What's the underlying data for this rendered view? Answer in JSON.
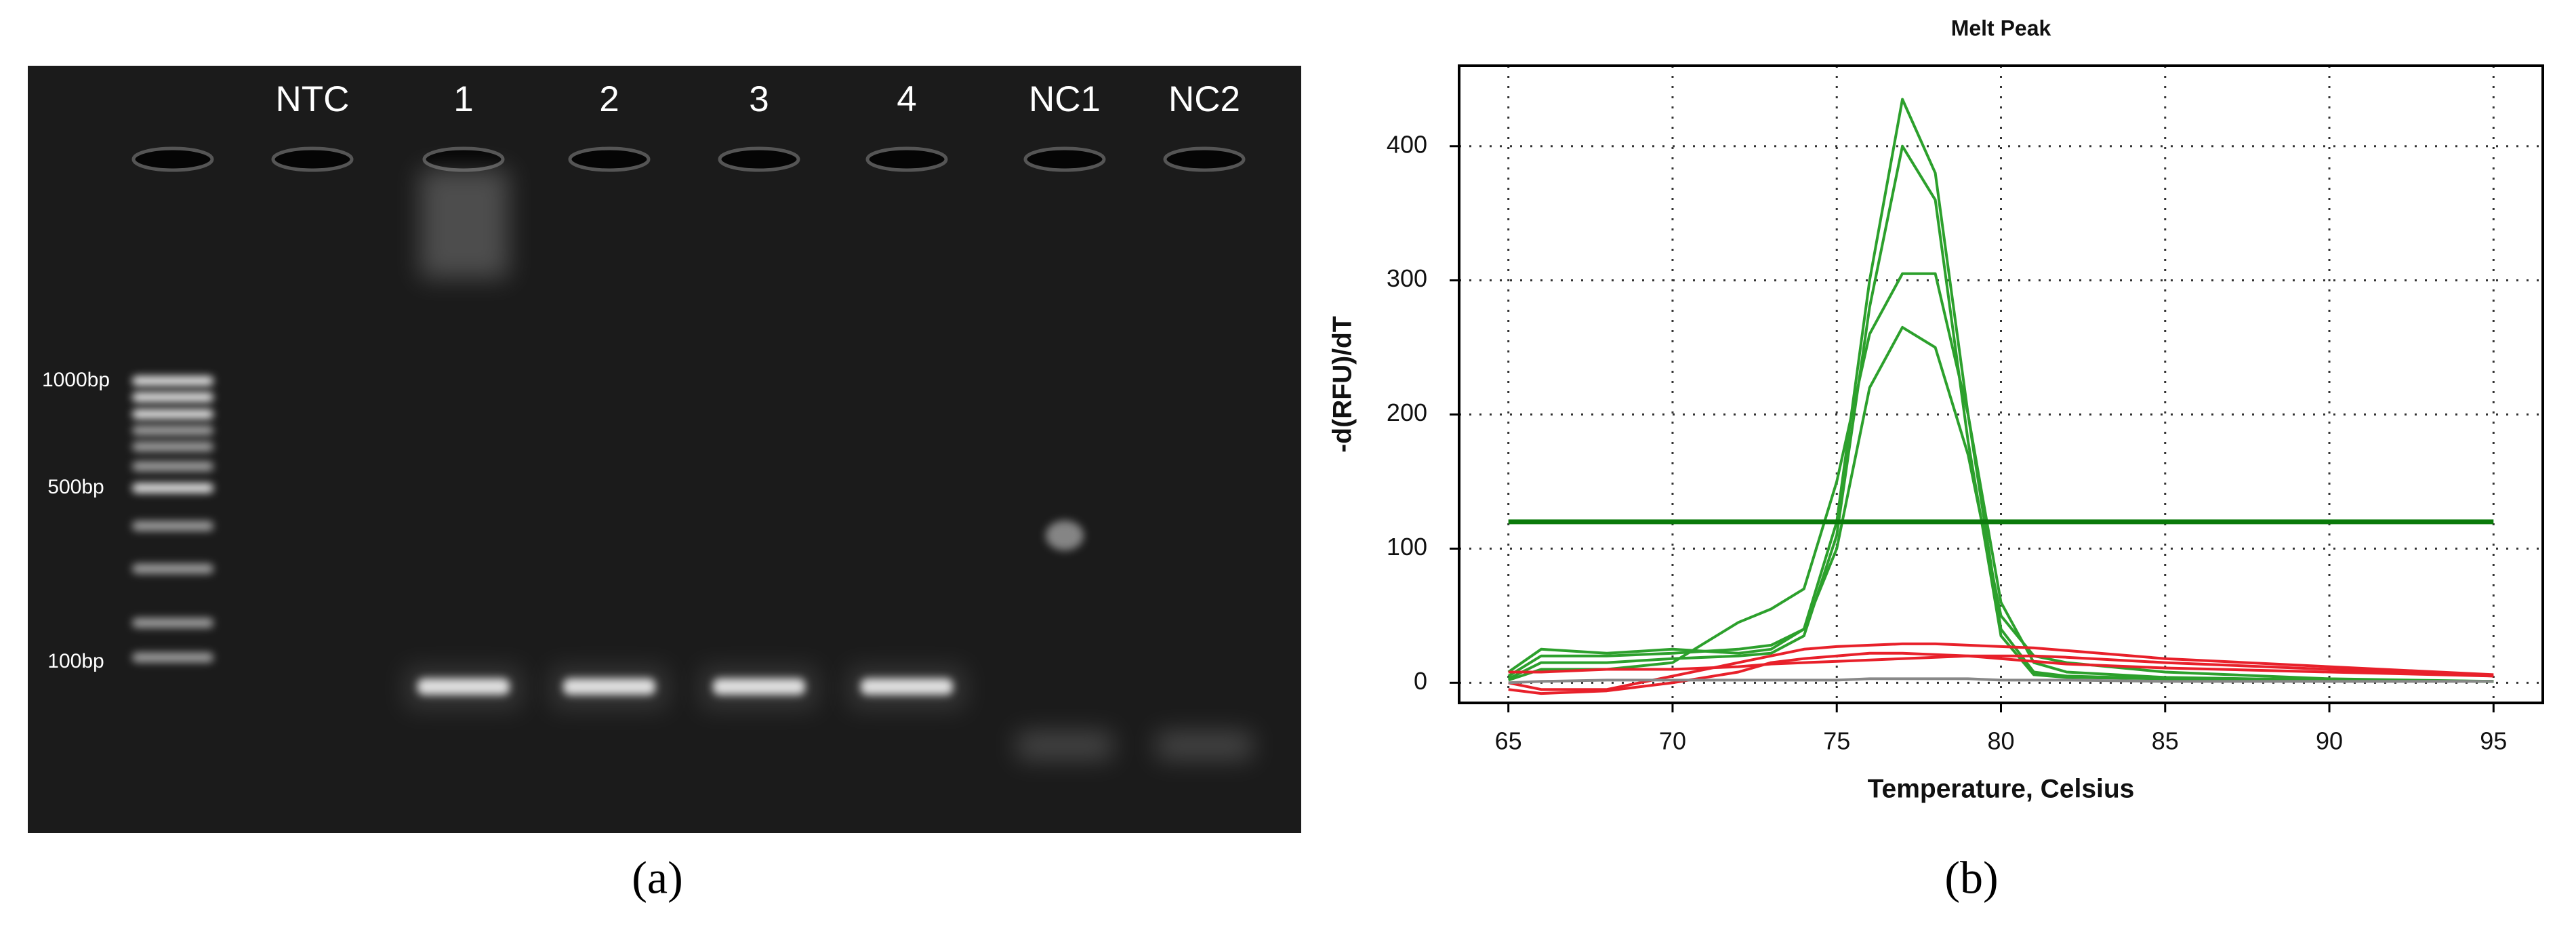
{
  "gel": {
    "lanes": [
      "NTC",
      "1",
      "2",
      "3",
      "4",
      "NC1",
      "NC2"
    ],
    "ladder_labels": [
      "1000bp",
      "500bp",
      "100bp"
    ]
  },
  "captions": [
    "(a)",
    "(b)"
  ],
  "chart_data": {
    "type": "line",
    "title": "Melt Peak",
    "x_label": "Temperature, Celsius",
    "y_label": "-d(RFU)/dT",
    "x": [
      65,
      66,
      68,
      70,
      72,
      73,
      74,
      75,
      76,
      77,
      78,
      79,
      80,
      81,
      82,
      85,
      90,
      95
    ],
    "series": [
      {
        "color": "#2ca02c",
        "values": [
          5,
          20,
          20,
          22,
          25,
          28,
          40,
          120,
          300,
          435,
          380,
          200,
          40,
          8,
          5,
          3,
          2,
          1
        ]
      },
      {
        "color": "#2ca02c",
        "values": [
          3,
          15,
          15,
          18,
          20,
          22,
          35,
          110,
          280,
          400,
          360,
          180,
          35,
          6,
          4,
          3,
          2,
          1
        ]
      },
      {
        "color": "#2ca02c",
        "values": [
          2,
          10,
          10,
          15,
          45,
          55,
          70,
          150,
          260,
          305,
          305,
          200,
          60,
          15,
          8,
          4,
          2,
          1
        ]
      },
      {
        "color": "#2ca02c",
        "values": [
          8,
          25,
          22,
          25,
          22,
          25,
          40,
          100,
          220,
          265,
          250,
          170,
          50,
          20,
          15,
          8,
          3,
          1
        ]
      },
      {
        "color": "#e8202a",
        "values": [
          0,
          -5,
          -5,
          5,
          15,
          20,
          25,
          27,
          28,
          29,
          29,
          28,
          27,
          26,
          24,
          18,
          12,
          6
        ]
      },
      {
        "color": "#e8202a",
        "values": [
          8,
          8,
          10,
          10,
          12,
          14,
          15,
          16,
          17,
          18,
          19,
          20,
          20,
          20,
          19,
          15,
          10,
          5
        ]
      },
      {
        "color": "#e8202a",
        "values": [
          -5,
          -8,
          -6,
          0,
          8,
          15,
          18,
          20,
          22,
          22,
          21,
          20,
          18,
          16,
          14,
          11,
          8,
          5
        ]
      },
      {
        "color": "#888888",
        "values": [
          0,
          1,
          2,
          2,
          2,
          2,
          2,
          2,
          3,
          3,
          3,
          3,
          2,
          2,
          2,
          1,
          1,
          1
        ]
      }
    ],
    "threshold": 120,
    "threshold_color": "#0a7a0a",
    "xlim": [
      63.5,
      96.5
    ],
    "xticks": [
      65,
      70,
      75,
      80,
      85,
      90,
      95
    ],
    "ylim": [
      -15,
      460
    ],
    "yticks": [
      0,
      100,
      200,
      300,
      400
    ],
    "grid": true
  }
}
